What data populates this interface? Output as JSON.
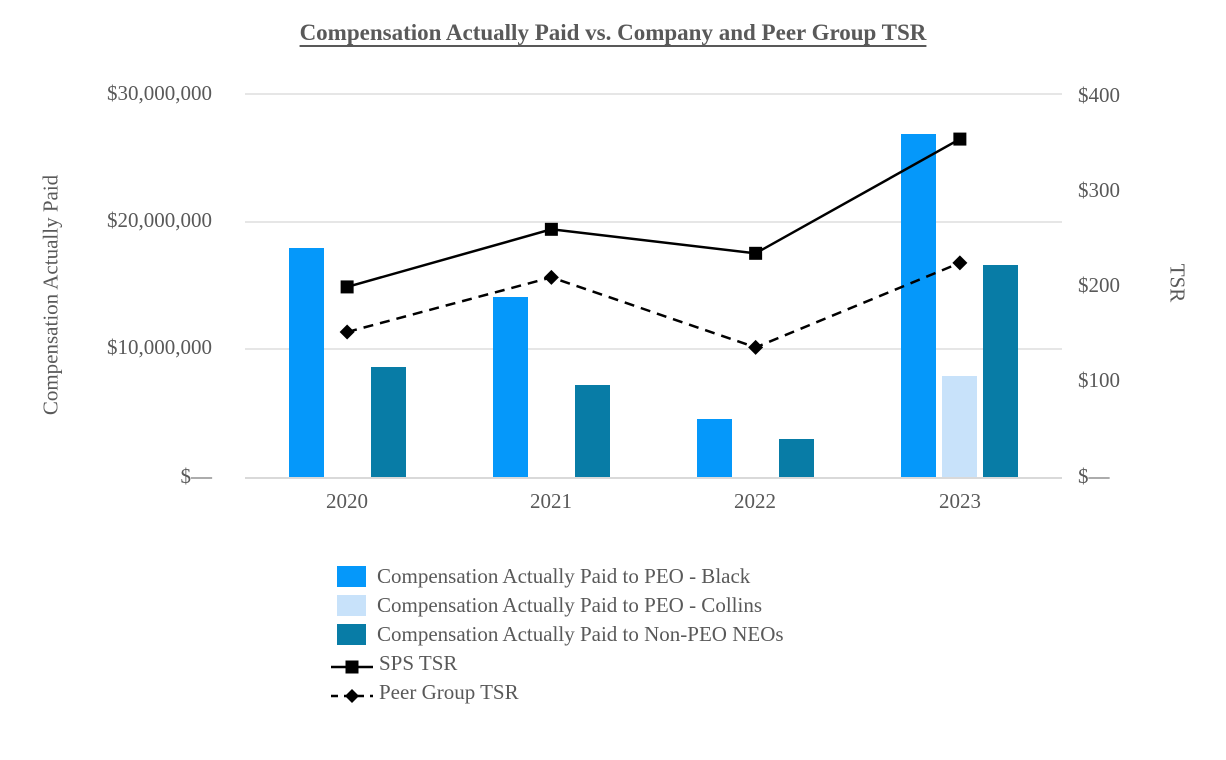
{
  "chart_data": {
    "type": "combo-bar-line",
    "title": "Compensation Actually Paid vs. Company and Peer Group TSR",
    "categories": [
      "2020",
      "2021",
      "2022",
      "2023"
    ],
    "bar_series": [
      {
        "name": "Compensation Actually Paid to PEO - Black",
        "color": "#0598FA",
        "values": [
          17900000,
          14100000,
          4500000,
          26800000
        ]
      },
      {
        "name": "Compensation Actually Paid to PEO - Collins",
        "color": "#C8E2FA",
        "values": [
          null,
          null,
          null,
          7900000
        ]
      },
      {
        "name": "Compensation Actually Paid to Non-PEO NEOs",
        "color": "#087CA6",
        "values": [
          8600000,
          7200000,
          3000000,
          16600000
        ]
      }
    ],
    "line_series": [
      {
        "name": "SPS TSR",
        "style": "solid",
        "marker": "square",
        "color": "#000000",
        "values": [
          198,
          258,
          233,
          352
        ]
      },
      {
        "name": "Peer Group TSR",
        "style": "dashed",
        "marker": "diamond",
        "color": "#000000",
        "values": [
          151,
          208,
          135,
          223
        ]
      }
    ],
    "left_axis": {
      "title": "Compensation Actually Paid",
      "min": 0,
      "max": 30000000,
      "ticks": [
        "$30,000,000",
        "$20,000,000",
        "$10,000,000",
        "$—"
      ]
    },
    "right_axis": {
      "title": "TSR",
      "min": 0,
      "max": 400,
      "ticks": [
        "$400",
        "$300",
        "$200",
        "$100",
        "$—"
      ]
    },
    "grid": "horizontal",
    "legend_position": "bottom",
    "colors": {
      "text": "#595959",
      "gridline": "#E6E6E6",
      "axis_line": "#D9D9D9"
    }
  }
}
